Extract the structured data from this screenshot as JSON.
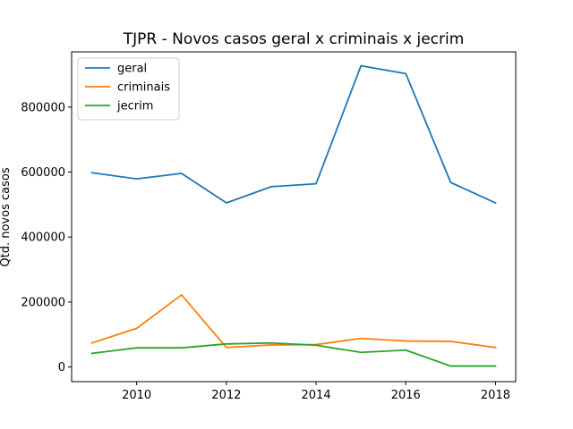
{
  "chart_data": {
    "type": "line",
    "title": "TJPR - Novos casos geral x criminais x jecrim",
    "xlabel": "",
    "ylabel": "Qtd. novos casos",
    "x": [
      2009,
      2010,
      2011,
      2012,
      2013,
      2014,
      2015,
      2016,
      2017,
      2018
    ],
    "xlim": [
      2008.55,
      2018.45
    ],
    "ylim": [
      -45000,
      970000
    ],
    "xticks": [
      2010,
      2012,
      2014,
      2016,
      2018
    ],
    "yticks": [
      0,
      200000,
      400000,
      600000,
      800000
    ],
    "ytick_labels": [
      "0",
      "200000",
      "400000",
      "600000",
      "800000"
    ],
    "xtick_labels": [
      "2010",
      "2012",
      "2014",
      "2016",
      "2018"
    ],
    "grid": false,
    "legend_position": "upper-left",
    "series": [
      {
        "name": "geral",
        "color": "#1f77b4",
        "values": [
          598000,
          579000,
          596000,
          505000,
          555000,
          564000,
          927000,
          903000,
          568000,
          505000
        ]
      },
      {
        "name": "criminais",
        "color": "#ff7f0e",
        "values": [
          74000,
          119000,
          222000,
          60000,
          68000,
          69000,
          88000,
          80000,
          79000,
          60000
        ]
      },
      {
        "name": "jecrim",
        "color": "#2ca02c",
        "values": [
          42000,
          59000,
          59000,
          71000,
          74000,
          67000,
          45000,
          52000,
          3000,
          3000
        ]
      }
    ]
  }
}
